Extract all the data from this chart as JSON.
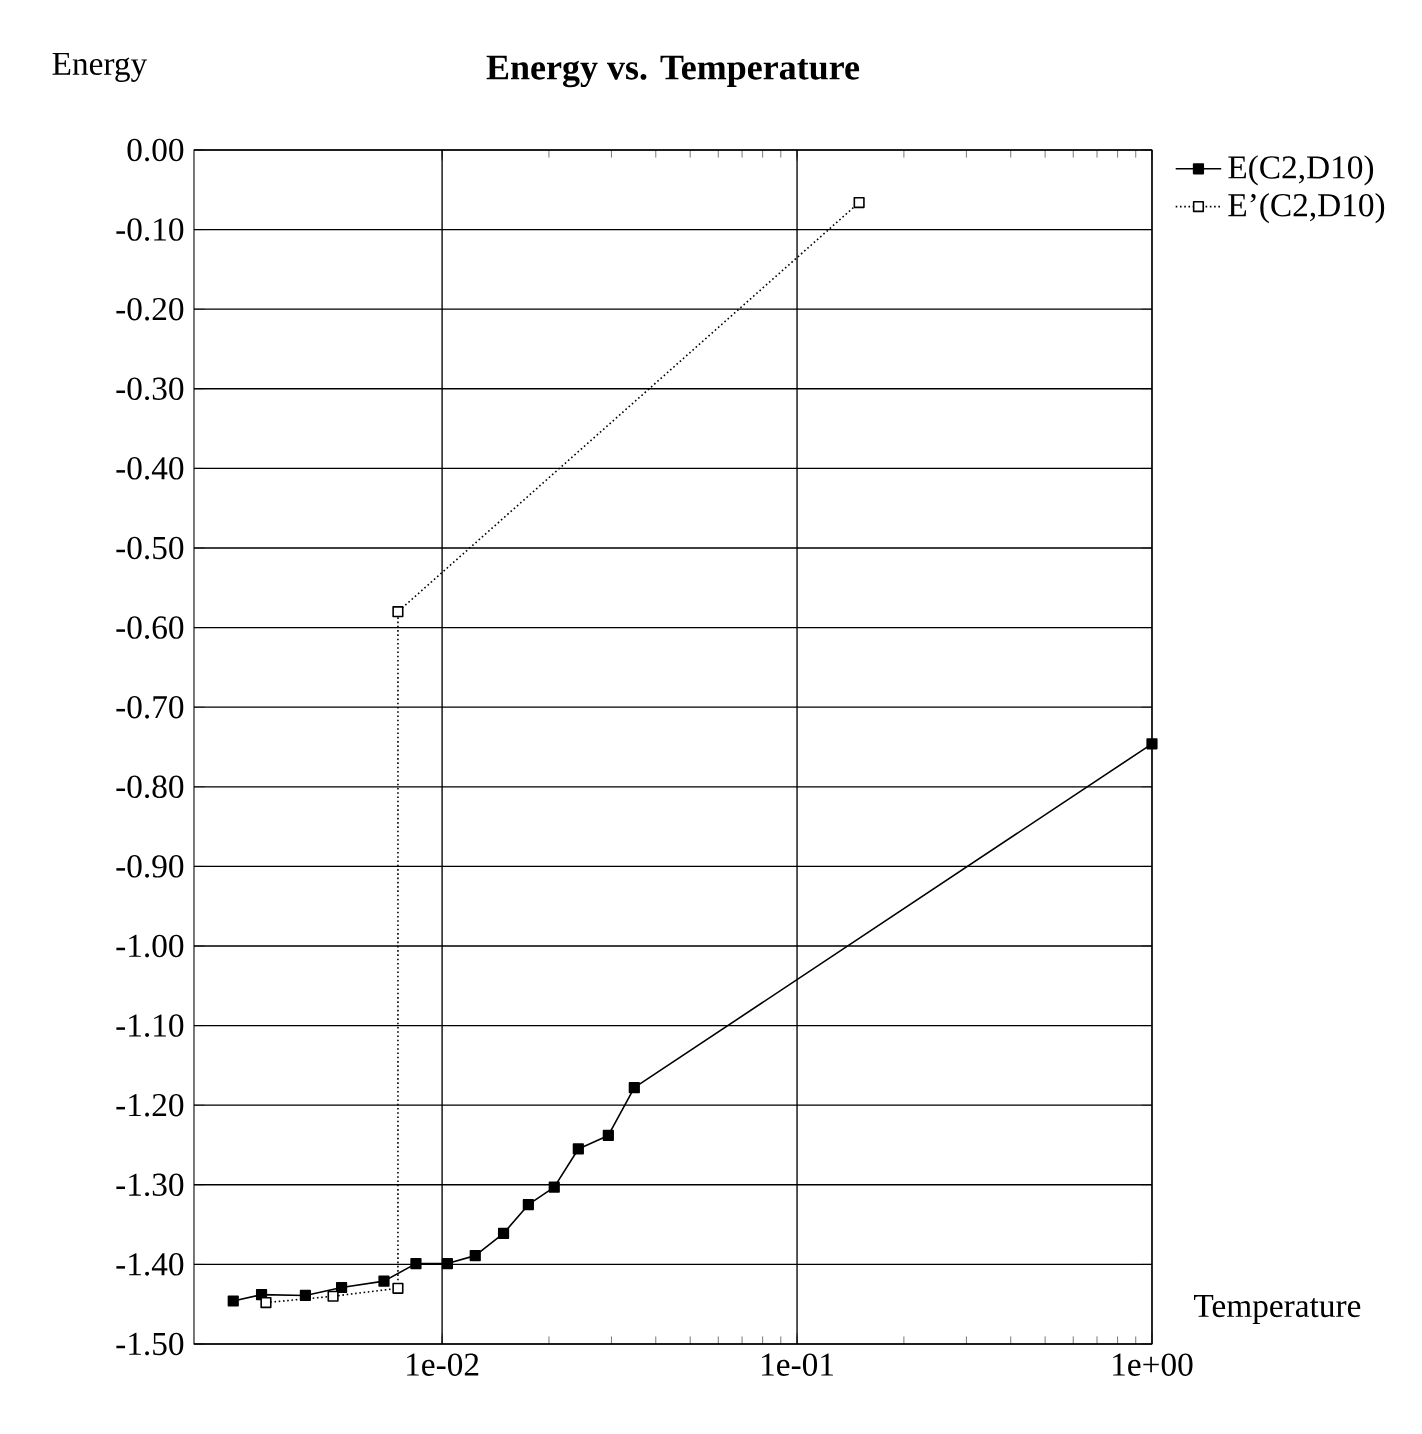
{
  "chart_data": {
    "type": "line",
    "title": "Energy vs. Temperature",
    "xlabel": "Temperature",
    "ylabel": "Energy",
    "log": "x",
    "grid": true,
    "legend": "top right",
    "xlim": [
      0.002,
      1
    ],
    "xticks": [
      {
        "value": 0.01,
        "label": "1e-02"
      },
      {
        "value": 0.1,
        "label": "1e-01"
      },
      {
        "value": 1,
        "label": "1e+00"
      }
    ],
    "ylim": [
      -1.5,
      0
    ],
    "yticks": [
      {
        "value": 0,
        "label": "0.00"
      },
      {
        "value": -0.1,
        "label": "-0.10"
      },
      {
        "value": -0.2,
        "label": "-0.20"
      },
      {
        "value": -0.3,
        "label": "-0.30"
      },
      {
        "value": -0.4,
        "label": "-0.40"
      },
      {
        "value": -0.5,
        "label": "-0.50"
      },
      {
        "value": -0.6,
        "label": "-0.60"
      },
      {
        "value": -0.7,
        "label": "-0.70"
      },
      {
        "value": -0.8,
        "label": "-0.80"
      },
      {
        "value": -0.9,
        "label": "-0.90"
      },
      {
        "value": -1.0,
        "label": "-1.00"
      },
      {
        "value": -1.1,
        "label": "-1.10"
      },
      {
        "value": -1.2,
        "label": "-1.20"
      },
      {
        "value": -1.3,
        "label": "-1.30"
      },
      {
        "value": -1.4,
        "label": "-1.40"
      },
      {
        "value": -1.5,
        "label": "-1.50"
      }
    ],
    "series": [
      {
        "name": "E(C2,D10)",
        "color": "#000000",
        "marker": "square",
        "line_style": "solid",
        "x": [
          0.00258,
          0.0031,
          0.00412,
          0.00521,
          0.00686,
          0.00844,
          0.01035,
          0.0124,
          0.0149,
          0.0175,
          0.0207,
          0.0242,
          0.0294,
          0.0348,
          1.0
        ],
        "values": [
          -1.446,
          -1.438,
          -1.439,
          -1.429,
          -1.421,
          -1.399,
          -1.399,
          -1.389,
          -1.361,
          -1.325,
          -1.303,
          -1.255,
          -1.238,
          -1.178,
          -0.746
        ]
      },
      {
        "name": "E’(C2,D10)",
        "color": "#000000",
        "marker": "square",
        "line_style": "dotted",
        "x": [
          0.00319,
          0.00493,
          0.00751,
          0.00751,
          0.1496
        ],
        "values": [
          -1.448,
          -1.44,
          -1.43,
          -0.58,
          -0.066
        ]
      }
    ]
  }
}
